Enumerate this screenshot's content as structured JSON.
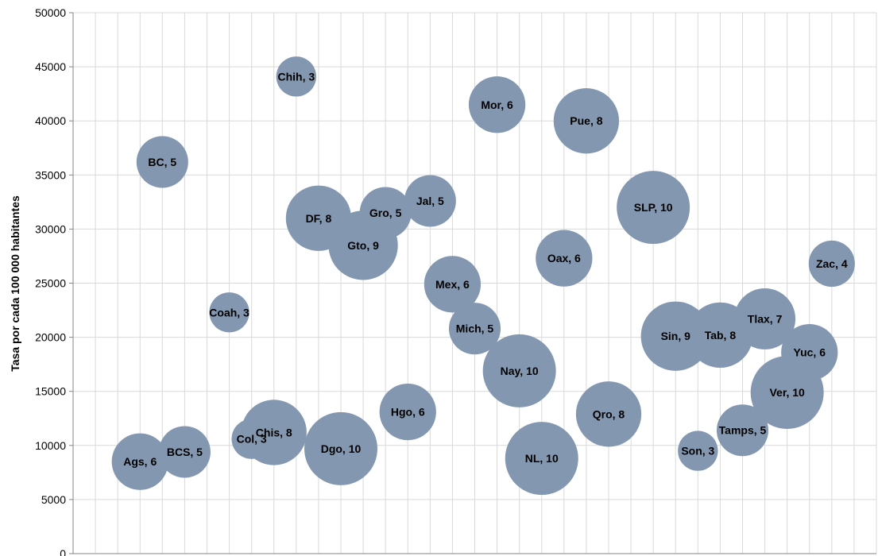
{
  "chart_data": {
    "type": "bubble",
    "title": "",
    "xlabel": "",
    "ylabel": "Tasa por cada 100 000 habitantes",
    "ylim": [
      0,
      50000
    ],
    "yticks": [
      "0",
      "5000",
      "10000",
      "15000",
      "20000",
      "25000",
      "30000",
      "35000",
      "40000",
      "45000",
      "50000"
    ],
    "xlim": [
      0,
      36
    ],
    "grid": true,
    "legend": "none",
    "bubble_color": "#8497b0",
    "points": [
      {
        "label": "Ags",
        "x": 3,
        "y": 8500,
        "size": 6
      },
      {
        "label": "BC",
        "x": 4,
        "y": 36200,
        "size": 5
      },
      {
        "label": "BCS",
        "x": 5,
        "y": 9400,
        "size": 5
      },
      {
        "label": "Coah",
        "x": 7,
        "y": 22300,
        "size": 3
      },
      {
        "label": "Col",
        "x": 8,
        "y": 10600,
        "size": 3
      },
      {
        "label": "Chis",
        "x": 9,
        "y": 11200,
        "size": 8
      },
      {
        "label": "Chih",
        "x": 10,
        "y": 44100,
        "size": 3
      },
      {
        "label": "DF",
        "x": 11,
        "y": 31000,
        "size": 8
      },
      {
        "label": "Dgo",
        "x": 12,
        "y": 9700,
        "size": 10
      },
      {
        "label": "Gto",
        "x": 13,
        "y": 28500,
        "size": 9
      },
      {
        "label": "Gro",
        "x": 14,
        "y": 31500,
        "size": 5
      },
      {
        "label": "Hgo",
        "x": 15,
        "y": 13100,
        "size": 6
      },
      {
        "label": "Jal",
        "x": 16,
        "y": 32600,
        "size": 5
      },
      {
        "label": "Mex",
        "x": 17,
        "y": 24900,
        "size": 6
      },
      {
        "label": "Mich",
        "x": 18,
        "y": 20800,
        "size": 5
      },
      {
        "label": "Mor",
        "x": 19,
        "y": 41500,
        "size": 6
      },
      {
        "label": "Nay",
        "x": 20,
        "y": 16900,
        "size": 10
      },
      {
        "label": "NL",
        "x": 21,
        "y": 8800,
        "size": 10
      },
      {
        "label": "Oax",
        "x": 22,
        "y": 27300,
        "size": 6
      },
      {
        "label": "Pue",
        "x": 23,
        "y": 40000,
        "size": 8
      },
      {
        "label": "Qro",
        "x": 24,
        "y": 12900,
        "size": 8
      },
      {
        "label": "SLP",
        "x": 26,
        "y": 32000,
        "size": 10
      },
      {
        "label": "Sin",
        "x": 27,
        "y": 20100,
        "size": 9
      },
      {
        "label": "Son",
        "x": 28,
        "y": 9500,
        "size": 3
      },
      {
        "label": "Tab",
        "x": 29,
        "y": 20200,
        "size": 8
      },
      {
        "label": "Tamps",
        "x": 30,
        "y": 11400,
        "size": 5
      },
      {
        "label": "Tlax",
        "x": 31,
        "y": 21700,
        "size": 7
      },
      {
        "label": "Ver",
        "x": 32,
        "y": 14900,
        "size": 10
      },
      {
        "label": "Yuc",
        "x": 33,
        "y": 18600,
        "size": 6
      },
      {
        "label": "Zac",
        "x": 34,
        "y": 26800,
        "size": 4
      }
    ]
  }
}
